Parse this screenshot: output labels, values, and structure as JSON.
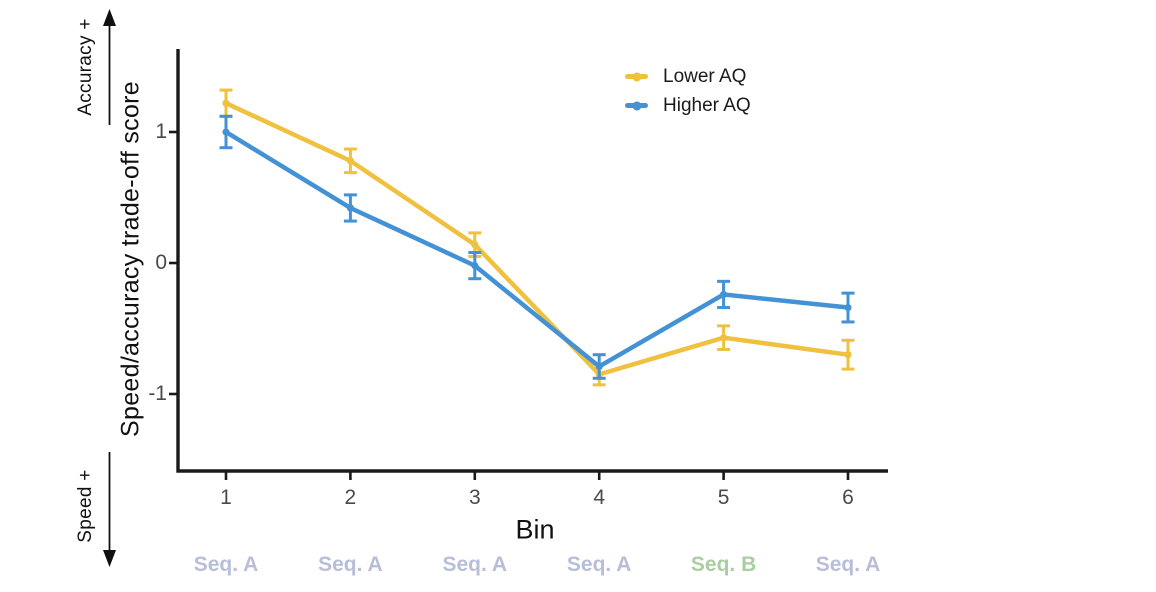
{
  "annotations": {
    "accuracy_label": "Accuracy +",
    "speed_label": "Speed +"
  },
  "chart_data": {
    "type": "line",
    "title": "",
    "xlabel": "Bin",
    "ylabel": "Speed/accuracy trade-off score",
    "x": [
      1,
      2,
      3,
      4,
      5,
      6
    ],
    "x_tick_labels": [
      "1",
      "2",
      "3",
      "4",
      "5",
      "6"
    ],
    "y_ticks": [
      1,
      0,
      -1
    ],
    "y_tick_labels": [
      "1",
      "0",
      "-1"
    ],
    "ylim": [
      -1.6,
      1.65
    ],
    "grid": false,
    "legend_position": "top-right-inside",
    "axis_color": "#1a1a1a",
    "tick_label_color": "#4a4a4a",
    "series": [
      {
        "name": "Lower AQ",
        "color": "#F0C13E",
        "values": [
          1.22,
          0.78,
          0.14,
          -0.85,
          -0.57,
          -0.7
        ],
        "errors": [
          0.1,
          0.09,
          0.09,
          0.08,
          0.09,
          0.11
        ]
      },
      {
        "name": "Higher AQ",
        "color": "#4292D5",
        "values": [
          1.0,
          0.42,
          -0.02,
          -0.79,
          -0.24,
          -0.34
        ],
        "errors": [
          0.12,
          0.1,
          0.1,
          0.09,
          0.1,
          0.11
        ]
      }
    ],
    "sequence_labels": [
      {
        "text": "Seq. A",
        "color": "#B8BED9"
      },
      {
        "text": "Seq. A",
        "color": "#B8BED9"
      },
      {
        "text": "Seq. A",
        "color": "#B8BED9"
      },
      {
        "text": "Seq. A",
        "color": "#B8BED9"
      },
      {
        "text": "Seq. B",
        "color": "#AACDA2"
      },
      {
        "text": "Seq. A",
        "color": "#B8BED9"
      }
    ]
  }
}
